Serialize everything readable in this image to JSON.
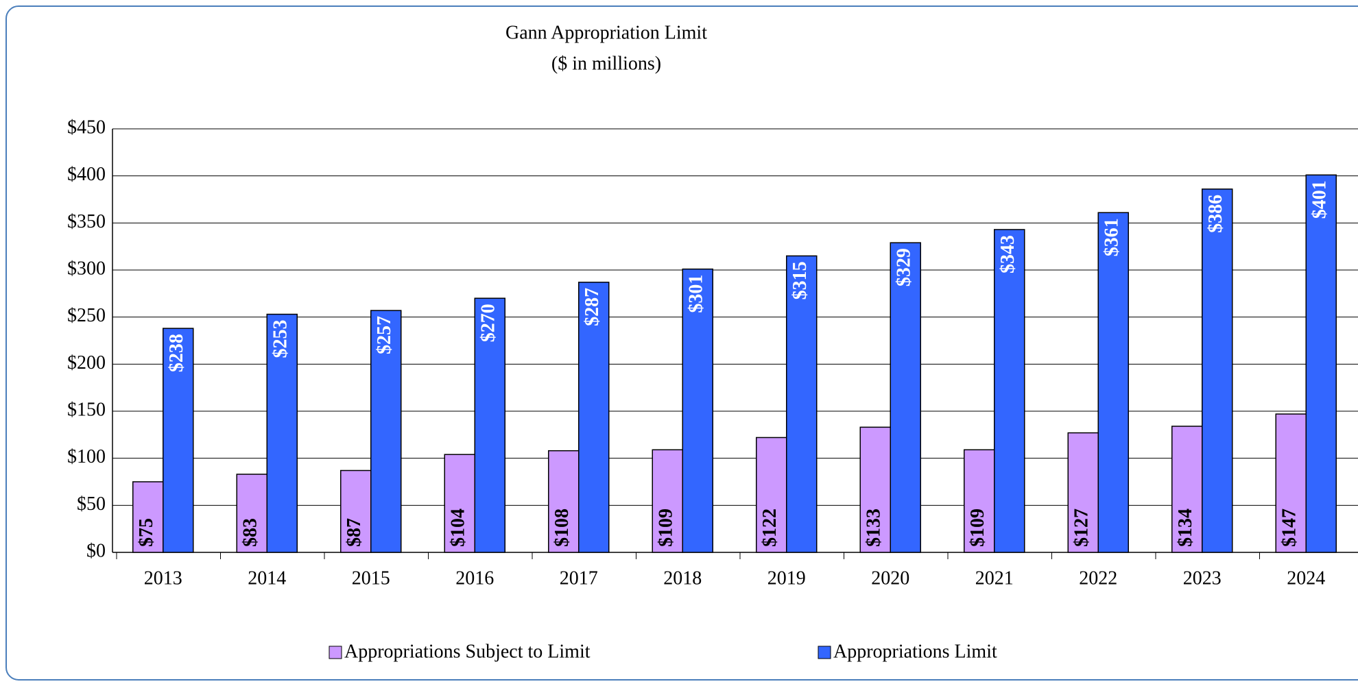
{
  "chart_data": {
    "type": "bar",
    "title": "Gann Appropriation Limit",
    "subtitle": "($ in millions)",
    "categories": [
      "2013",
      "2014",
      "2015",
      "2016",
      "2017",
      "2018",
      "2019",
      "2020",
      "2021",
      "2022",
      "2023",
      "2024"
    ],
    "series": [
      {
        "name": "Appropriations Subject to Limit",
        "color": "#cc99ff",
        "values": [
          75,
          83,
          87,
          104,
          108,
          109,
          122,
          133,
          109,
          127,
          134,
          147
        ],
        "value_labels": [
          "$75",
          "$83",
          "$87",
          "$104",
          "$108",
          "$109",
          "$122",
          "$133",
          "$109",
          "$127",
          "$134",
          "$147"
        ]
      },
      {
        "name": "Appropriations Limit",
        "color": "#3366ff",
        "values": [
          238,
          253,
          257,
          270,
          287,
          301,
          315,
          329,
          343,
          361,
          386,
          401
        ],
        "value_labels": [
          "$238",
          "$253",
          "$257",
          "$270",
          "$287",
          "$301",
          "$315",
          "$329",
          "$343",
          "$361",
          "$386",
          "$401"
        ]
      }
    ],
    "ylim": [
      0,
      450
    ],
    "yticks": [
      {
        "value": 0,
        "label": "$0"
      },
      {
        "value": 50,
        "label": "$50"
      },
      {
        "value": 100,
        "label": "$100"
      },
      {
        "value": 150,
        "label": "$150"
      },
      {
        "value": 200,
        "label": "$200"
      },
      {
        "value": 250,
        "label": "$250"
      },
      {
        "value": 300,
        "label": "$300"
      },
      {
        "value": 350,
        "label": "$350"
      },
      {
        "value": 400,
        "label": "$400"
      },
      {
        "value": 450,
        "label": "$450"
      }
    ],
    "grid": true,
    "legend": "bottom"
  }
}
